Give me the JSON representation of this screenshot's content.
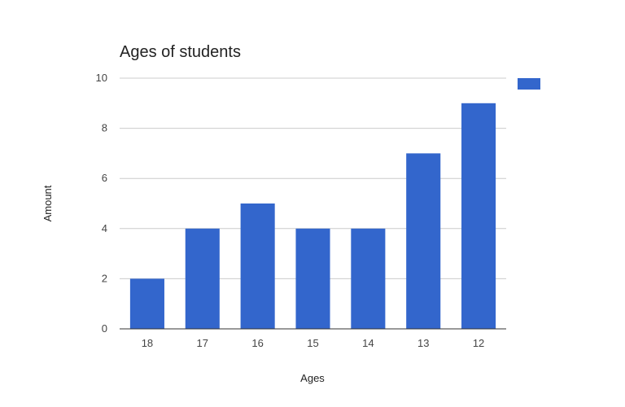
{
  "chart_data": {
    "type": "bar",
    "title": "Ages of students",
    "xlabel": "Ages",
    "ylabel": "Amount",
    "categories": [
      "18",
      "17",
      "16",
      "15",
      "14",
      "13",
      "12"
    ],
    "series": [
      {
        "values": [
          2,
          4,
          5,
          4,
          4,
          7,
          9
        ]
      }
    ],
    "ylim": [
      0,
      10
    ],
    "yticks": [
      "0",
      "2",
      "4",
      "6",
      "8",
      "10"
    ],
    "grid": true,
    "legend_position": "right",
    "colors": {
      "bar": "#3366cc",
      "grid": "#cccccc",
      "baseline": "#333333"
    }
  }
}
